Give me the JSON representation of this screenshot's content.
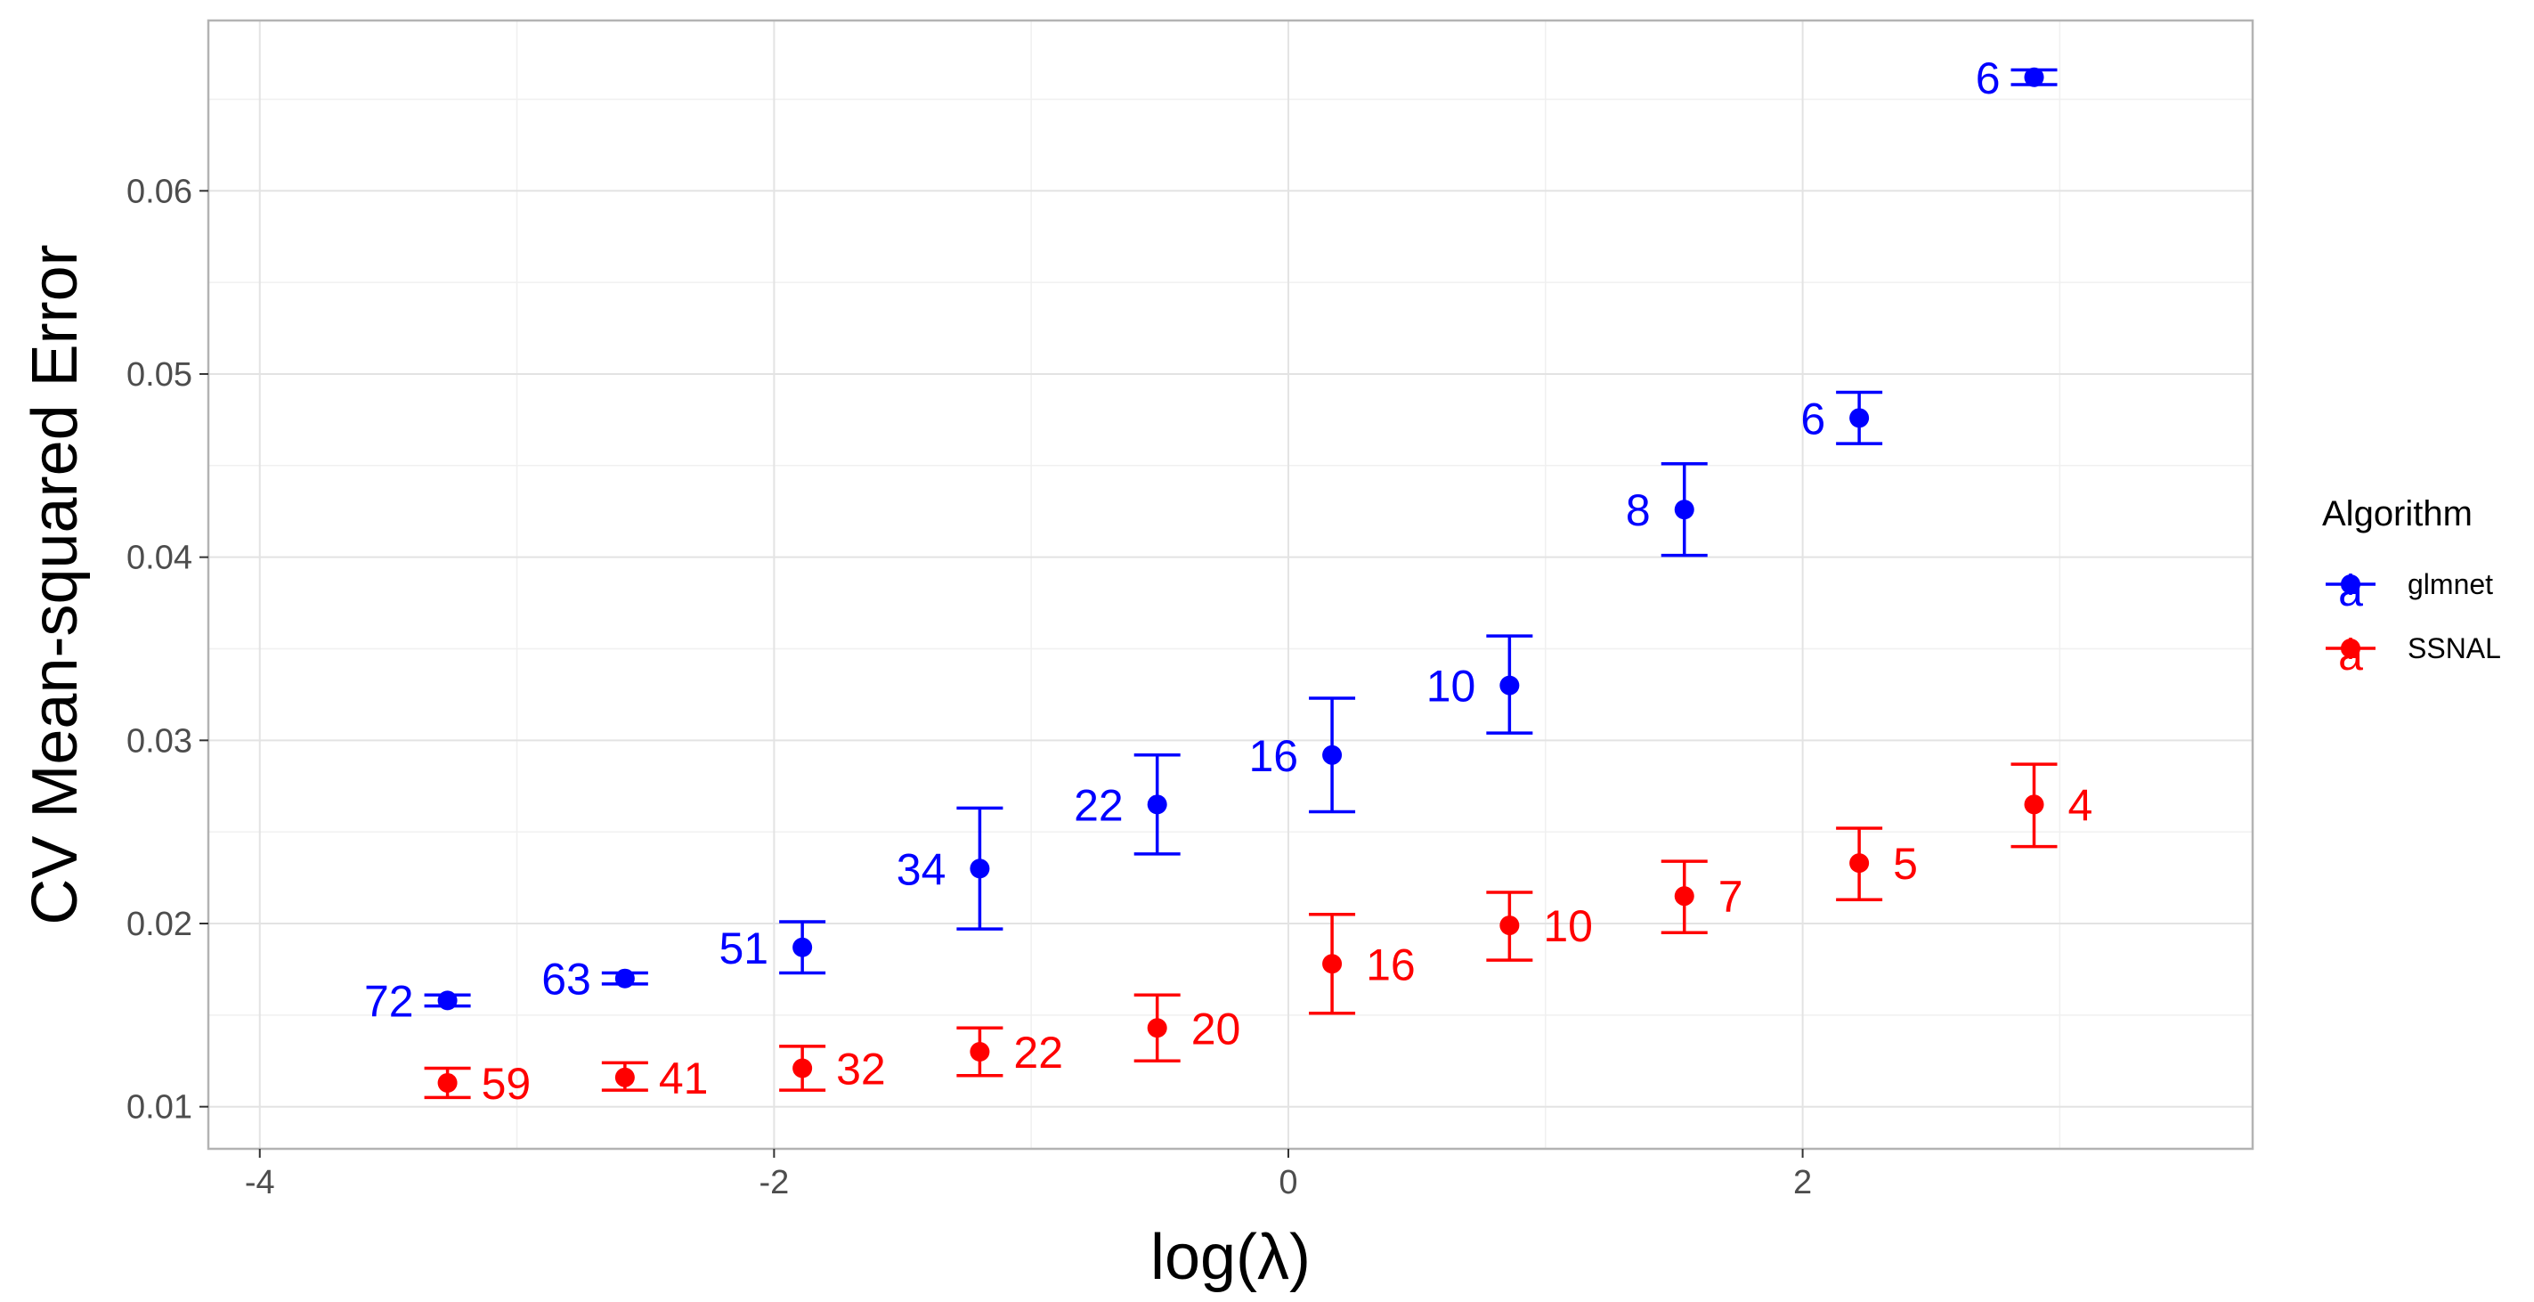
{
  "chart_data": {
    "type": "scatter",
    "xlabel": "log(λ)",
    "ylabel": "CV Mean-squared Error",
    "xlim": [
      -4.2,
      3.75
    ],
    "ylim": [
      0.0077,
      0.0693
    ],
    "xticks": [
      -4,
      -2,
      0,
      2
    ],
    "xtick_labels": [
      "-4",
      "-2",
      "0",
      "2"
    ],
    "yticks": [
      0.01,
      0.02,
      0.03,
      0.04,
      0.05,
      0.06
    ],
    "ytick_labels": [
      "0.01",
      "0.02",
      "0.03",
      "0.04",
      "0.05",
      "0.06"
    ],
    "grid": true,
    "legend": {
      "title": "Algorithm",
      "position": "right",
      "glyph": "a"
    },
    "series": [
      {
        "name": "glmnet",
        "color": "#0000ff",
        "label_side": "left",
        "points": [
          {
            "x": -3.27,
            "y": 0.0158,
            "ymin": 0.0155,
            "ymax": 0.0161,
            "label": "72"
          },
          {
            "x": -2.58,
            "y": 0.017,
            "ymin": 0.0167,
            "ymax": 0.0173,
            "label": "63"
          },
          {
            "x": -1.89,
            "y": 0.0187,
            "ymin": 0.0173,
            "ymax": 0.0201,
            "label": "51"
          },
          {
            "x": -1.2,
            "y": 0.023,
            "ymin": 0.0197,
            "ymax": 0.0263,
            "label": "34"
          },
          {
            "x": -0.51,
            "y": 0.0265,
            "ymin": 0.0238,
            "ymax": 0.0292,
            "label": "22"
          },
          {
            "x": 0.17,
            "y": 0.0292,
            "ymin": 0.0261,
            "ymax": 0.0323,
            "label": "16"
          },
          {
            "x": 0.86,
            "y": 0.033,
            "ymin": 0.0304,
            "ymax": 0.0357,
            "label": "10"
          },
          {
            "x": 1.54,
            "y": 0.0426,
            "ymin": 0.0401,
            "ymax": 0.0451,
            "label": "8"
          },
          {
            "x": 2.22,
            "y": 0.0476,
            "ymin": 0.0462,
            "ymax": 0.049,
            "label": "6"
          },
          {
            "x": 2.9,
            "y": 0.0662,
            "ymin": 0.0658,
            "ymax": 0.0666,
            "label": "6"
          }
        ]
      },
      {
        "name": "SSNAL",
        "color": "#ff0000",
        "label_side": "right",
        "points": [
          {
            "x": -3.27,
            "y": 0.0113,
            "ymin": 0.0105,
            "ymax": 0.0121,
            "label": "59"
          },
          {
            "x": -2.58,
            "y": 0.0116,
            "ymin": 0.0109,
            "ymax": 0.0124,
            "label": "41"
          },
          {
            "x": -1.89,
            "y": 0.0121,
            "ymin": 0.0109,
            "ymax": 0.0133,
            "label": "32"
          },
          {
            "x": -1.2,
            "y": 0.013,
            "ymin": 0.0117,
            "ymax": 0.0143,
            "label": "22"
          },
          {
            "x": -0.51,
            "y": 0.0143,
            "ymin": 0.0125,
            "ymax": 0.0161,
            "label": "20"
          },
          {
            "x": 0.17,
            "y": 0.0178,
            "ymin": 0.0151,
            "ymax": 0.0205,
            "label": "16"
          },
          {
            "x": 0.86,
            "y": 0.0199,
            "ymin": 0.018,
            "ymax": 0.0217,
            "label": "10"
          },
          {
            "x": 1.54,
            "y": 0.0215,
            "ymin": 0.0195,
            "ymax": 0.0234,
            "label": "7"
          },
          {
            "x": 2.22,
            "y": 0.0233,
            "ymin": 0.0213,
            "ymax": 0.0252,
            "label": "5"
          },
          {
            "x": 2.9,
            "y": 0.0265,
            "ymin": 0.0242,
            "ymax": 0.0287,
            "label": "4"
          }
        ]
      }
    ]
  }
}
